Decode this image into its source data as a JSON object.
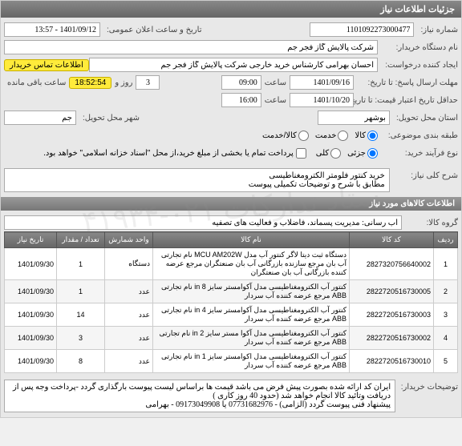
{
  "header": {
    "title": "جزئیات اطلاعات نیاز"
  },
  "labels": {
    "need_number": "شماره نیاز:",
    "announce_datetime": "تاریخ و ساعت اعلان عمومی:",
    "device_name": "نام دستگاه خریدار:",
    "request_creator": "ایجاد کننده درخواست:",
    "contact_badge": "اطلاعات تماس خریدار",
    "response_deadline": "مهلت ارسال پاسخ: تا تاریخ:",
    "time_label": "ساعت",
    "day_and": "روز و",
    "remaining": "ساعت باقی مانده",
    "price_validity": "حداقل تاریخ اعتبار قیمت: تا تاریخ:",
    "delivery_state": "استان محل تحویل:",
    "delivery_city": "شهر محل تحویل:",
    "category": "طبقه بندی موضوعی:",
    "goods": "کالا",
    "service": "خدمت",
    "goods_service": "کالا/خدمت",
    "purchase_process": "نوع فرآیند خرید:",
    "partial": "جزئی",
    "total": "کلی",
    "payment_note": "پرداخت تمام یا بخشی از مبلغ خرید،از محل \"اسناد خزانه اسلامی\" خواهد بود.",
    "keywords": "شرح کلی نیاز:",
    "items_info": "اطلاعات کالاهای مورد نیاز",
    "goods_group": "گروه کالا:",
    "buyer_notes": "توضیحات خریدار:"
  },
  "values": {
    "need_number": "1101092273000477",
    "announce_datetime": "1401/09/12 - 13:57",
    "device_name": "شرکت پالایش گاز فجر جم",
    "request_creator": "احسان بهرامی کارشناس خرید خارجی شرکت پالایش گاز فجر جم",
    "response_date": "1401/09/16",
    "response_time": "09:00",
    "remaining_days": "3",
    "remaining_time": "18:52:54",
    "price_date": "1401/10/20",
    "price_time": "16:00",
    "delivery_state": "بوشهر",
    "delivery_city": "جم",
    "keywords": "خرید کنتور فلومتر الکترومغناطیسی\nمطابق با شرح و توضیحات تکمیلی پیوست",
    "goods_group": "آب رسانی: مدیریت پسماند، فاضلاب و فعالیت های تصفیه",
    "buyer_notes": "ایران کد ارائه شده بصورت پیش فرض می باشد قیمت ها براساس لیست پیوست بارگذاری گردد -پرداخت وجه پس از دریافت وتائید کالا انجام خواهد شد (حدود 40 روز کاری )\nپیشنهاد فنی پیوست گردد (الزامی) - 07731682976 یا 09173049908 - بهرامی"
  },
  "table": {
    "columns": {
      "row": "ردیف",
      "code": "کد کالا",
      "name": "نام کالا",
      "unit": "واحد شمارش",
      "qty": "تعداد / مقدار",
      "date": "تاریخ نیاز"
    },
    "rows": [
      {
        "row": "1",
        "code": "2827320756640002",
        "name": "دستگاه ثبت دیتا لاگر کنتور آب مدل MCU AM202W نام تجارتی آب بان مرجع سازنده بازرگانی آب بان صنعتگران مرجع عرضه کننده بازرگانی آب بان صنعتگران",
        "unit": "دستگاه",
        "qty": "1",
        "date": "1401/09/30"
      },
      {
        "row": "2",
        "code": "2822720516730005",
        "name": "کنتور آب الکترومغناطیسی مدل آکوامستر سایز in 8 نام تجارتی ABB مرجع عرضه کننده آب سردار",
        "unit": "عدد",
        "qty": "1",
        "date": "1401/09/30"
      },
      {
        "row": "3",
        "code": "2822720516730003",
        "name": "کنتور آب الکترومغناطیسی مدل آکوامستر سایز in 4 نام تجارتی ABB مرجع عرضه کننده آب سردار",
        "unit": "عدد",
        "qty": "14",
        "date": "1401/09/30"
      },
      {
        "row": "4",
        "code": "2822720516730002",
        "name": "کنتور آب الکترومغناطیسی مدل آکوا مستر سایز in 2 نام تجارتی ABB مرجع عرضه کننده آب سردار",
        "unit": "عدد",
        "qty": "3",
        "date": "1401/09/30"
      },
      {
        "row": "5",
        "code": "2822720516730010",
        "name": "کنتور آب الکترومغناطیسی مدل اکوامستر سایز in 1 نام تجارتی ABB مرجع عرضه کننده آب سردار",
        "unit": "عدد",
        "qty": "8",
        "date": "1401/09/30"
      }
    ]
  },
  "watermark": "ستاد تدارکات ۰۲۱-۴۱۹۳۴"
}
